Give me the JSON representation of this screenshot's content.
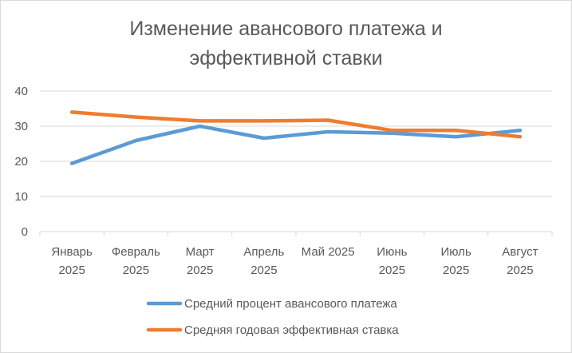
{
  "chart_data": {
    "type": "line",
    "title_line1": "Изменение авансового платежа и",
    "title_line2": "эффективной ставки",
    "categories": [
      [
        "Январь",
        "2025"
      ],
      [
        "Февраль",
        "2025"
      ],
      [
        "Март",
        "2025"
      ],
      [
        "Апрель",
        "2025"
      ],
      [
        "Май 2025"
      ],
      [
        "Июнь",
        "2025"
      ],
      [
        "Июль",
        "2025"
      ],
      [
        "Август",
        "2025"
      ]
    ],
    "ylim": [
      0,
      40
    ],
    "yticks": [
      "0",
      "10",
      "20",
      "30",
      "40"
    ],
    "grid": true,
    "legend_position": "bottom",
    "series": [
      {
        "name": "Средний процент авансового платежа",
        "color": "#5b9bd5",
        "values": [
          19.4,
          25.9,
          30.0,
          26.6,
          28.4,
          28.0,
          27.0,
          28.8
        ]
      },
      {
        "name": "Средняя годовая эффективная ставка",
        "color": "#ed7d31",
        "values": [
          34.0,
          32.6,
          31.5,
          31.5,
          31.7,
          28.8,
          28.8,
          27.0
        ]
      }
    ]
  }
}
